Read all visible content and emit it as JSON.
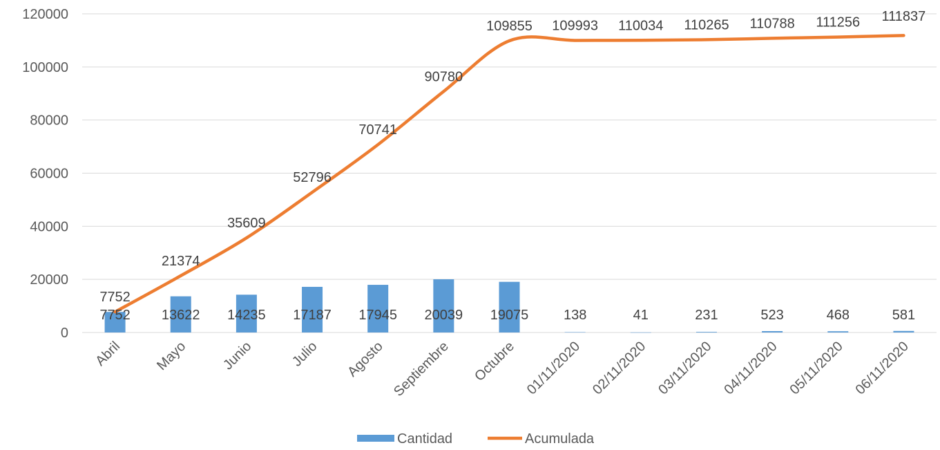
{
  "chart_data": {
    "type": "bar",
    "categories": [
      "Abril",
      "Mayo",
      "Junio",
      "Julio",
      "Agosto",
      "Septiembre",
      "Octubre",
      "01/11/2020",
      "02/11/2020",
      "03/11/2020",
      "04/11/2020",
      "05/11/2020",
      "06/11/2020"
    ],
    "series": [
      {
        "name": "Cantidad",
        "type": "bar",
        "color": "#5B9BD5",
        "values": [
          7752,
          13622,
          14235,
          17187,
          17945,
          20039,
          19075,
          138,
          41,
          231,
          523,
          468,
          581
        ]
      },
      {
        "name": "Acumulada",
        "type": "line",
        "color": "#ED7D31",
        "values": [
          7752,
          21374,
          35609,
          52796,
          70741,
          90780,
          109855,
          109993,
          110034,
          110265,
          110788,
          111256,
          111837
        ]
      }
    ],
    "yticks": [
      "0",
      "20000",
      "40000",
      "60000",
      "80000",
      "100000",
      "120000"
    ],
    "ylim": [
      0,
      120000
    ],
    "grid": true,
    "legend_position": "bottom"
  }
}
